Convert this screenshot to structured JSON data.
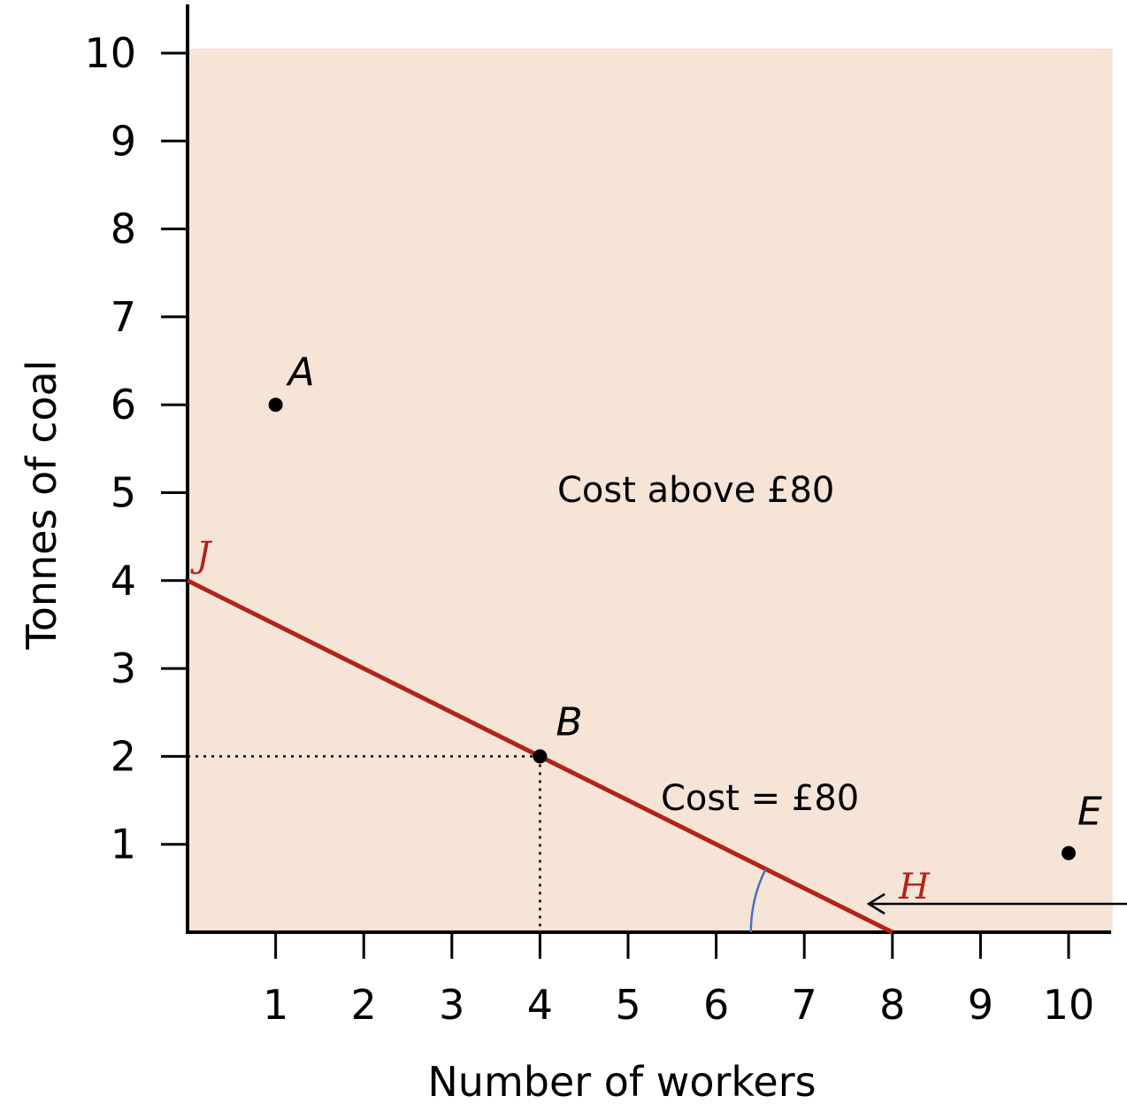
{
  "colors": {
    "region_fill": "#f6e4d7",
    "line": "#b22418",
    "axis": "#000000",
    "angle_arc": "#4a6fc1",
    "end_labels": "#b22418"
  },
  "chart_data": {
    "type": "line",
    "xlabel": "Number of workers",
    "ylabel": "Tonnes of coal",
    "xlim": [
      0,
      10.5
    ],
    "ylim": [
      0,
      10.5
    ],
    "x_ticks": [
      1,
      2,
      3,
      4,
      5,
      6,
      7,
      8,
      9,
      10
    ],
    "y_ticks": [
      1,
      2,
      3,
      4,
      5,
      6,
      7,
      8,
      9,
      10
    ],
    "grid": false,
    "shaded_region": {
      "x_range": [
        0,
        10.5
      ],
      "y_range": [
        0,
        10.05
      ],
      "description_label": "Cost above £80"
    },
    "isocost_line": {
      "points": [
        [
          0,
          4
        ],
        [
          8,
          0
        ]
      ],
      "label": "Cost = £80"
    },
    "line_end_labels": [
      {
        "text": "J",
        "x": 0,
        "y": 4
      },
      {
        "text": "H",
        "x": 8,
        "y": 0
      }
    ],
    "points": [
      {
        "label": "A",
        "x": 1,
        "y": 6
      },
      {
        "label": "B",
        "x": 4,
        "y": 2
      },
      {
        "label": "E",
        "x": 10,
        "y": 0.9
      }
    ],
    "guide_lines_to": {
      "x": 4,
      "y": 2
    },
    "slope_angle_marker_at": {
      "x": 8,
      "y": 0
    }
  }
}
